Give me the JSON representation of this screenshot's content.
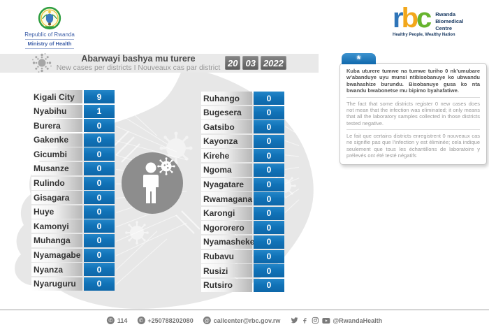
{
  "brand": {
    "gov_line1": "Republic of Rwanda",
    "gov_line2": "Ministry of Health",
    "rbc_letters": {
      "r": "r",
      "b": "b",
      "c": "c"
    },
    "rbc_name_lines": [
      "Rwanda",
      "Biomedical",
      "Centre"
    ],
    "rbc_tagline": "Healthy People, Wealthy Nation"
  },
  "header": {
    "title": "Abarwayi bashya mu turere",
    "subtitle": "New cases per districts  I  Nouveaux cas par district",
    "date_day": "20",
    "date_month": "03",
    "date_year": "2022"
  },
  "info_box": {
    "tab_symbol": "*",
    "paragraph_rw": "Kuba uturere tumwe na tumwe turiho 0 nk’umubare w’abanduye uyu munsi ntibisobanuye ko ubwandu bwahashize burundu. Bisobanuye gusa ko nta bwandu bwabonetse mu bipimo byahafatiwe.",
    "paragraph_en": "The fact that some districts register 0 new cases does not mean that the infection was eliminated; it only means that all the laboratory samples collected in those districts tested negative.",
    "paragraph_fr": "Le fait que certains districts enregistrent 0 nouveaux cas ne signifie pas que l’infection y est éliminée; cela indique seulement que tous les échantillons de laboratoire y prélevés ont été testé négatifs"
  },
  "districts": {
    "left": [
      {
        "name": "Kigali City",
        "value": "9"
      },
      {
        "name": "Nyabihu",
        "value": "1"
      },
      {
        "name": "Burera",
        "value": "0"
      },
      {
        "name": "Gakenke",
        "value": "0"
      },
      {
        "name": "Gicumbi",
        "value": "0"
      },
      {
        "name": "Musanze",
        "value": "0"
      },
      {
        "name": "Rulindo",
        "value": "0"
      },
      {
        "name": "Gisagara",
        "value": "0"
      },
      {
        "name": "Huye",
        "value": "0"
      },
      {
        "name": "Kamonyi",
        "value": "0"
      },
      {
        "name": "Muhanga",
        "value": "0"
      },
      {
        "name": "Nyamagabe",
        "value": "0"
      },
      {
        "name": "Nyanza",
        "value": "0"
      },
      {
        "name": "Nyaruguru",
        "value": "0"
      }
    ],
    "right": [
      {
        "name": "Ruhango",
        "value": "0"
      },
      {
        "name": "Bugesera",
        "value": "0"
      },
      {
        "name": "Gatsibo",
        "value": "0"
      },
      {
        "name": "Kayonza",
        "value": "0"
      },
      {
        "name": "Kirehe",
        "value": "0"
      },
      {
        "name": "Ngoma",
        "value": "0"
      },
      {
        "name": "Nyagatare",
        "value": "0"
      },
      {
        "name": "Rwamagana",
        "value": "0"
      },
      {
        "name": "Karongi",
        "value": "0"
      },
      {
        "name": "Ngororero",
        "value": "0"
      },
      {
        "name": "Nyamasheke",
        "value": "0"
      },
      {
        "name": "Rubavu",
        "value": "0"
      },
      {
        "name": "Rusizi",
        "value": "0"
      },
      {
        "name": "Rutsiro",
        "value": "0"
      }
    ]
  },
  "chart_data": {
    "type": "table",
    "title": "Abarwayi bashya mu turere / New cases per districts / Nouveaux cas par district",
    "date": "20 03 2022",
    "columns": [
      "District",
      "New cases"
    ],
    "rows": [
      [
        "Kigali City",
        9
      ],
      [
        "Nyabihu",
        1
      ],
      [
        "Burera",
        0
      ],
      [
        "Gakenke",
        0
      ],
      [
        "Gicumbi",
        0
      ],
      [
        "Musanze",
        0
      ],
      [
        "Rulindo",
        0
      ],
      [
        "Gisagara",
        0
      ],
      [
        "Huye",
        0
      ],
      [
        "Kamonyi",
        0
      ],
      [
        "Muhanga",
        0
      ],
      [
        "Nyamagabe",
        0
      ],
      [
        "Nyanza",
        0
      ],
      [
        "Nyaruguru",
        0
      ],
      [
        "Ruhango",
        0
      ],
      [
        "Bugesera",
        0
      ],
      [
        "Gatsibo",
        0
      ],
      [
        "Kayonza",
        0
      ],
      [
        "Kirehe",
        0
      ],
      [
        "Ngoma",
        0
      ],
      [
        "Nyagatare",
        0
      ],
      [
        "Rwamagana",
        0
      ],
      [
        "Karongi",
        0
      ],
      [
        "Ngororero",
        0
      ],
      [
        "Nyamasheke",
        0
      ],
      [
        "Rubavu",
        0
      ],
      [
        "Rusizi",
        0
      ],
      [
        "Rutsiro",
        0
      ]
    ]
  },
  "footer": {
    "hotline": "114",
    "phone": "+250788202080",
    "email": "callcenter@rbc.gov.rw",
    "social_handle": "@RwandaHealth"
  },
  "colors": {
    "accent_blue": "#1173b8",
    "header_bar": "#e9e9e9",
    "map_fill": "#e7e7e7",
    "date_badge": "#6e6e6e",
    "rbc_r_blue": "#2e74b8",
    "rbc_b_orange": "#f2a71b",
    "rbc_c_green": "#67b42e"
  }
}
